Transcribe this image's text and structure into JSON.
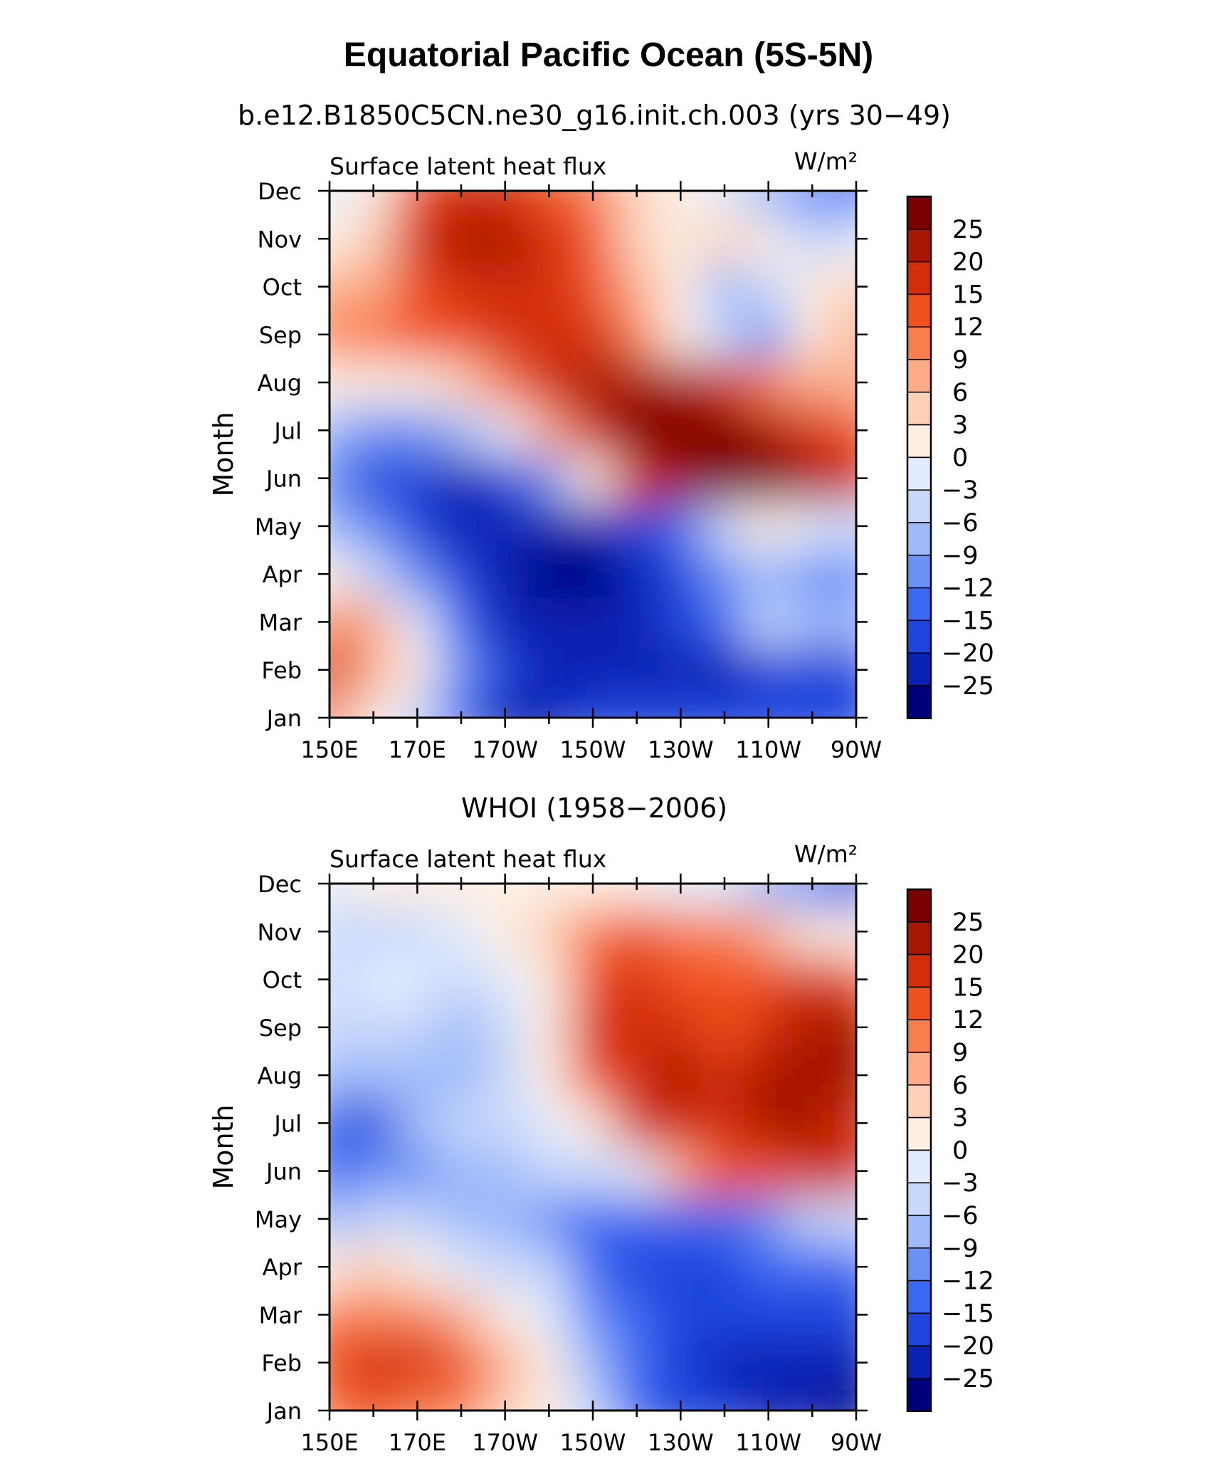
{
  "figure": {
    "title": "Equatorial Pacific Ocean (5S-5N)"
  },
  "palette": [
    "#00007a",
    "#0a22b4",
    "#1f45dc",
    "#3b68f2",
    "#6a91f6",
    "#9fbaf9",
    "#c7d8fb",
    "#e2ecfd",
    "#fdeee2",
    "#fcd1b8",
    "#fbab86",
    "#f97e4d",
    "#f0501c",
    "#d32d0a",
    "#a81605",
    "#7a0000"
  ],
  "chart_data": [
    {
      "type": "heatmap",
      "subtitle": "b.e12.B1850C5CN.ne30_g16.init.ch.003 (yrs 30−49)",
      "variable": "Surface latent heat flux",
      "units": "W/m²",
      "ylabel": "Month",
      "x": [
        "150E",
        "160E",
        "170E",
        "180",
        "170W",
        "160W",
        "150W",
        "140W",
        "130W",
        "120W",
        "110W",
        "100W",
        "90W"
      ],
      "x_tick_labels": [
        "150E",
        "170E",
        "170W",
        "150W",
        "130W",
        "110W",
        "90W"
      ],
      "y": [
        "Jan",
        "Feb",
        "Mar",
        "Apr",
        "May",
        "Jun",
        "Jul",
        "Aug",
        "Sep",
        "Oct",
        "Nov",
        "Dec"
      ],
      "levels": [
        -25,
        -20,
        -15,
        -12,
        -9,
        -6,
        -3,
        0,
        3,
        6,
        9,
        12,
        15,
        20,
        25
      ],
      "colorbar_labels": [
        "25",
        "20",
        "15",
        "12",
        "9",
        "6",
        "3",
        "0",
        "−3",
        "−6",
        "−9",
        "−12",
        "−15",
        "−20",
        "−25"
      ],
      "values": [
        [
          10,
          2,
          -6,
          -15,
          -22,
          -21,
          -20,
          -19,
          -18,
          -18,
          -19,
          -20,
          -20
        ],
        [
          15,
          8,
          0,
          -10,
          -20,
          -23,
          -22,
          -22,
          -21,
          -21,
          -20,
          -20,
          -18
        ],
        [
          9,
          6,
          -3,
          -13,
          -22,
          -24,
          -25,
          -24,
          -18,
          -14,
          -6,
          -7,
          -9
        ],
        [
          0,
          -4,
          -10,
          -18,
          -24,
          -27,
          -26,
          -23,
          -19,
          -12,
          -8,
          -10,
          -12
        ],
        [
          -8,
          -12,
          -17,
          -22,
          -25,
          -25,
          -24,
          -20,
          -13,
          -5,
          0,
          -2,
          -5
        ],
        [
          -10,
          -16,
          -20,
          -22,
          -18,
          -10,
          0,
          15,
          22,
          27,
          28,
          24,
          18
        ],
        [
          -8,
          -10,
          -11,
          -8,
          -3,
          8,
          18,
          26,
          28,
          27,
          22,
          16,
          14
        ],
        [
          0,
          1,
          2,
          4,
          10,
          16,
          20,
          22,
          20,
          15,
          11,
          8,
          8
        ],
        [
          10,
          11,
          12,
          14,
          16,
          18,
          16,
          11,
          0,
          -6,
          -10,
          0,
          6
        ],
        [
          6,
          8,
          12,
          15,
          15,
          16,
          14,
          8,
          0,
          -8,
          -4,
          0,
          4
        ],
        [
          1,
          4,
          18,
          21,
          23,
          18,
          13,
          5,
          0,
          3,
          2,
          -5,
          -2
        ],
        [
          -1,
          0,
          14,
          16,
          15,
          12,
          9,
          3,
          0,
          -3,
          -8,
          -12,
          -15
        ]
      ]
    },
    {
      "type": "heatmap",
      "subtitle": "WHOI (1958−2006)",
      "variable": "Surface latent heat flux",
      "units": "W/m²",
      "ylabel": "Month",
      "x": [
        "150E",
        "160E",
        "170E",
        "180",
        "170W",
        "160W",
        "150W",
        "140W",
        "130W",
        "120W",
        "110W",
        "100W",
        "90W"
      ],
      "x_tick_labels": [
        "150E",
        "170E",
        "170W",
        "150W",
        "130W",
        "110W",
        "90W"
      ],
      "y": [
        "Jan",
        "Feb",
        "Mar",
        "Apr",
        "May",
        "Jun",
        "Jul",
        "Aug",
        "Sep",
        "Oct",
        "Nov",
        "Dec"
      ],
      "levels": [
        -25,
        -20,
        -15,
        -12,
        -9,
        -6,
        -3,
        0,
        3,
        6,
        9,
        12,
        15,
        20,
        25
      ],
      "colorbar_labels": [
        "25",
        "20",
        "15",
        "12",
        "9",
        "6",
        "3",
        "0",
        "−3",
        "−6",
        "−9",
        "−12",
        "−15",
        "−20",
        "−25"
      ],
      "values": [
        [
          10,
          12,
          11,
          9,
          5,
          2,
          -6,
          -14,
          -18,
          -20,
          -22,
          -24,
          -27
        ],
        [
          14,
          17,
          16,
          12,
          6,
          1,
          -8,
          -15,
          -19,
          -21,
          -23,
          -24,
          -25
        ],
        [
          9,
          11,
          10,
          6,
          1,
          -2,
          -12,
          -15,
          -18,
          -17,
          -17,
          -19,
          -19
        ],
        [
          2,
          4,
          2,
          -2,
          -4,
          -6,
          -14,
          -16,
          -18,
          -16,
          -15,
          -15,
          -13
        ],
        [
          -7,
          -6,
          -6,
          -9,
          -9,
          -12,
          -15,
          -15,
          -15,
          -14,
          -10,
          -6,
          -5
        ],
        [
          -13,
          -12,
          -10,
          -9,
          -8,
          -6,
          -6,
          -3,
          8,
          12,
          14,
          16,
          17
        ],
        [
          -14,
          -16,
          -9,
          -6,
          -4,
          -1,
          1,
          16,
          18,
          15,
          20,
          21,
          19
        ],
        [
          -7,
          -8,
          -9,
          -7,
          -4,
          0,
          14,
          18,
          21,
          17,
          20,
          22,
          20
        ],
        [
          -6,
          -5,
          -5,
          -7,
          -5,
          0,
          15,
          19,
          18,
          14,
          18,
          24,
          22
        ],
        [
          -4,
          -2,
          -3,
          -4,
          -3,
          1,
          13,
          16,
          14,
          12,
          14,
          16,
          14
        ],
        [
          -4,
          -4,
          -4,
          -3,
          1,
          4,
          9,
          12,
          10,
          10,
          6,
          2,
          0
        ],
        [
          -1,
          0,
          1,
          0,
          1,
          2,
          2,
          0,
          -1,
          -3,
          -7,
          -12,
          -16
        ]
      ]
    }
  ]
}
